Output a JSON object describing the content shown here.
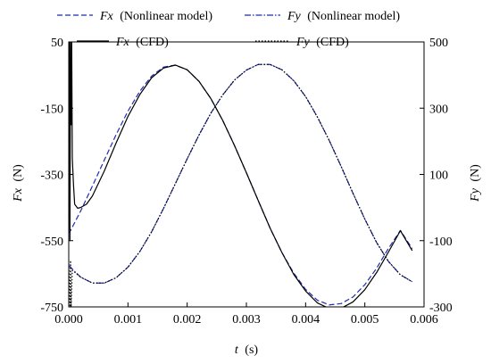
{
  "chart_data": {
    "type": "line",
    "x_label_var": "t",
    "x_label_unit": "(s)",
    "y_left_label_var": "Fx",
    "y_left_label_unit": "(N)",
    "y_right_label_var": "Fy",
    "y_right_label_unit": "(N)",
    "xlim": [
      0,
      0.006
    ],
    "y_left_lim": [
      -750,
      50
    ],
    "y_right_lim": [
      -300,
      500
    ],
    "x_ticks": [
      "0.000",
      "0.001",
      "0.002",
      "0.003",
      "0.004",
      "0.005",
      "0.006"
    ],
    "y_left_ticks": [
      "50",
      "-150",
      "-350",
      "-550",
      "-750"
    ],
    "y_right_ticks": [
      "500",
      "300",
      "100",
      "-100",
      "-300"
    ],
    "grid": false,
    "legend_position": "top",
    "series": [
      {
        "name": "(Nonlinear model)",
        "name_var": "Fx",
        "axis": "left",
        "color": "#1f2bb0",
        "dash": "dashed",
        "x": [
          0,
          0.0002,
          0.0004,
          0.0006,
          0.0008,
          0.001,
          0.0012,
          0.0014,
          0.0016,
          0.0018,
          0.002,
          0.0022,
          0.0024,
          0.0026,
          0.0028,
          0.003,
          0.0032,
          0.0034,
          0.0036,
          0.0038,
          0.004,
          0.0042,
          0.0044,
          0.0046,
          0.0048,
          0.005,
          0.0052,
          0.0054,
          0.0056,
          0.0058
        ],
        "y": [
          -530,
          -461,
          -385,
          -307,
          -230,
          -159,
          -99,
          -53,
          -26,
          -20,
          -34,
          -69,
          -121,
          -187,
          -263,
          -345,
          -429,
          -512,
          -586,
          -648,
          -697,
          -730,
          -744,
          -740,
          -720,
          -683,
          -633,
          -573,
          -519,
          -574
        ]
      },
      {
        "name": "(Nonlinear model)",
        "name_var": "Fy",
        "axis": "right",
        "color": "#1f2bb0",
        "dash": "dashdot",
        "x": [
          0,
          0.0002,
          0.0004,
          0.0006,
          0.0008,
          0.001,
          0.0012,
          0.0014,
          0.0016,
          0.0018,
          0.002,
          0.0022,
          0.0024,
          0.0026,
          0.0028,
          0.003,
          0.0032,
          0.0034,
          0.0036,
          0.0038,
          0.004,
          0.0042,
          0.0044,
          0.0046,
          0.0048,
          0.005,
          0.0052,
          0.0054,
          0.0056,
          0.0058
        ],
        "y": [
          -175,
          -210,
          -228,
          -228,
          -212,
          -180,
          -133,
          -73,
          -3,
          72,
          147,
          219,
          285,
          340,
          385,
          415,
          432,
          432,
          416,
          383,
          335,
          273,
          202,
          124,
          43,
          -35,
          -106,
          -163,
          -203,
          -224
        ]
      },
      {
        "name": "(CFD)",
        "name_var": "Fx",
        "axis": "left",
        "color": "#000000",
        "dash": "solid",
        "x": [
          0,
          1e-05,
          2e-05,
          3e-05,
          4e-05,
          5e-05,
          6e-05,
          8e-05,
          0.0001,
          0.00015,
          0.0002,
          0.0003,
          0.0004,
          0.0006,
          0.0008,
          0.001,
          0.0012,
          0.0014,
          0.0016,
          0.0018,
          0.002,
          0.0022,
          0.0024,
          0.0026,
          0.0028,
          0.003,
          0.0032,
          0.0034,
          0.0036,
          0.0038,
          0.004,
          0.0042,
          0.0044,
          0.0046,
          0.0048,
          0.005,
          0.0052,
          0.0054,
          0.0056,
          0.0058
        ],
        "y": [
          -520,
          50,
          -550,
          50,
          -200,
          50,
          -300,
          -380,
          -440,
          -452,
          -450,
          -440,
          -415,
          -340,
          -255,
          -175,
          -109,
          -58,
          -29,
          -20,
          -34,
          -69,
          -121,
          -187,
          -263,
          -345,
          -429,
          -512,
          -586,
          -652,
          -702,
          -738,
          -755,
          -754,
          -735,
          -698,
          -646,
          -584,
          -520,
          -580
        ]
      },
      {
        "name": "(CFD)",
        "name_var": "Fy",
        "axis": "right",
        "color": "#000000",
        "dash": "dotted",
        "x": [
          0,
          2e-05,
          3e-05,
          4e-05,
          6e-05,
          0.0001,
          0.0002,
          0.0004,
          0.0006,
          0.0008,
          0.001,
          0.0012,
          0.0014,
          0.0016,
          0.0018,
          0.002,
          0.0022,
          0.0024,
          0.0026,
          0.0028,
          0.003,
          0.0032,
          0.0034,
          0.0036,
          0.0038,
          0.004,
          0.0042,
          0.0044,
          0.0046,
          0.0048,
          0.005,
          0.0052,
          0.0054,
          0.0056,
          0.0058
        ],
        "y": [
          -170,
          -300,
          -160,
          -300,
          -190,
          -195,
          -210,
          -228,
          -228,
          -212,
          -180,
          -133,
          -73,
          -3,
          72,
          147,
          219,
          285,
          340,
          385,
          415,
          432,
          432,
          416,
          383,
          335,
          273,
          202,
          124,
          43,
          -35,
          -106,
          -163,
          -203,
          -224
        ]
      }
    ]
  }
}
